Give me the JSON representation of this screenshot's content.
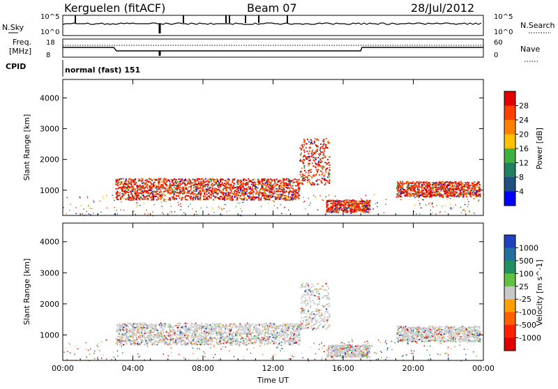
{
  "header": {
    "station": "Kerguelen (fitACF)",
    "beam": "Beam 07",
    "date": "28/Jul/2012"
  },
  "status_panels": {
    "nsky_label": "N.Sky",
    "nsearch_label": "N.Search",
    "nsky_ticks": [
      "10^5",
      "10^0"
    ],
    "nsearch_ticks": [
      "10^5",
      "10^0"
    ],
    "freq_label_line1": "Freq.",
    "freq_label_line2": "[MHz]",
    "freq_ticks": [
      "18",
      "8"
    ],
    "nave_label": "Nave",
    "nave_ticks": [
      "60",
      "0"
    ],
    "cpid_label": "CPID",
    "cpid_text": "normal (fast) 151"
  },
  "chart_data": [
    {
      "type": "heatmap",
      "name": "power",
      "ylabel": "Slant Range [km]",
      "xlabel": "",
      "x_ticks": [
        "00:00",
        "04:00",
        "08:00",
        "12:00",
        "16:00",
        "20:00",
        "00:00"
      ],
      "y_ticks": [
        1000,
        2000,
        3000,
        4000
      ],
      "ylim": [
        180,
        4600
      ],
      "xlim_hours": [
        0,
        24
      ],
      "colorbar": {
        "label": "Power [dB]",
        "ticks": [
          "28",
          "24",
          "20",
          "16",
          "12",
          "8",
          "4"
        ],
        "colors": [
          "#e00000",
          "#ff4000",
          "#ff8000",
          "#ffc000",
          "#40b040",
          "#208060",
          "#205080",
          "#0000ff"
        ]
      },
      "features": [
        {
          "start_h": 3.0,
          "end_h": 13.5,
          "range_km": [
            700,
            1400
          ],
          "level_db": 28
        },
        {
          "start_h": 13.5,
          "end_h": 15.2,
          "range_km": [
            1200,
            2700
          ],
          "level_db": 16
        },
        {
          "start_h": 15.0,
          "end_h": 17.5,
          "range_km": [
            300,
            700
          ],
          "level_db": 24
        },
        {
          "start_h": 19.0,
          "end_h": 23.8,
          "range_km": [
            800,
            1300
          ],
          "level_db": 24
        }
      ]
    },
    {
      "type": "heatmap",
      "name": "velocity",
      "ylabel": "Slant Range [km]",
      "xlabel": "Time UT",
      "x_ticks": [
        "00:00",
        "04:00",
        "08:00",
        "12:00",
        "16:00",
        "20:00",
        "00:00"
      ],
      "y_ticks": [
        1000,
        2000,
        3000,
        4000
      ],
      "ylim": [
        180,
        4600
      ],
      "xlim_hours": [
        0,
        24
      ],
      "colorbar": {
        "label": "Velocity [m s^-1]",
        "ticks": [
          "1000",
          "500",
          "100",
          "25",
          "-25",
          "-100",
          "-500",
          "-1000"
        ],
        "colors": [
          "#2040c0",
          "#2070a0",
          "#209060",
          "#60c040",
          "#c8c8c8",
          "#ffa000",
          "#ff6000",
          "#ff2000",
          "#e00000"
        ]
      },
      "features": [
        {
          "start_h": 3.0,
          "end_h": 13.5,
          "range_km": [
            700,
            1400
          ],
          "velocity_ms": 0
        },
        {
          "start_h": 13.5,
          "end_h": 15.2,
          "range_km": [
            1200,
            2700
          ],
          "velocity_ms": 0
        },
        {
          "start_h": 15.0,
          "end_h": 17.5,
          "range_km": [
            300,
            700
          ],
          "velocity_ms": -100
        },
        {
          "start_h": 19.0,
          "end_h": 23.8,
          "range_km": [
            800,
            1300
          ],
          "velocity_ms": 0
        }
      ]
    }
  ]
}
